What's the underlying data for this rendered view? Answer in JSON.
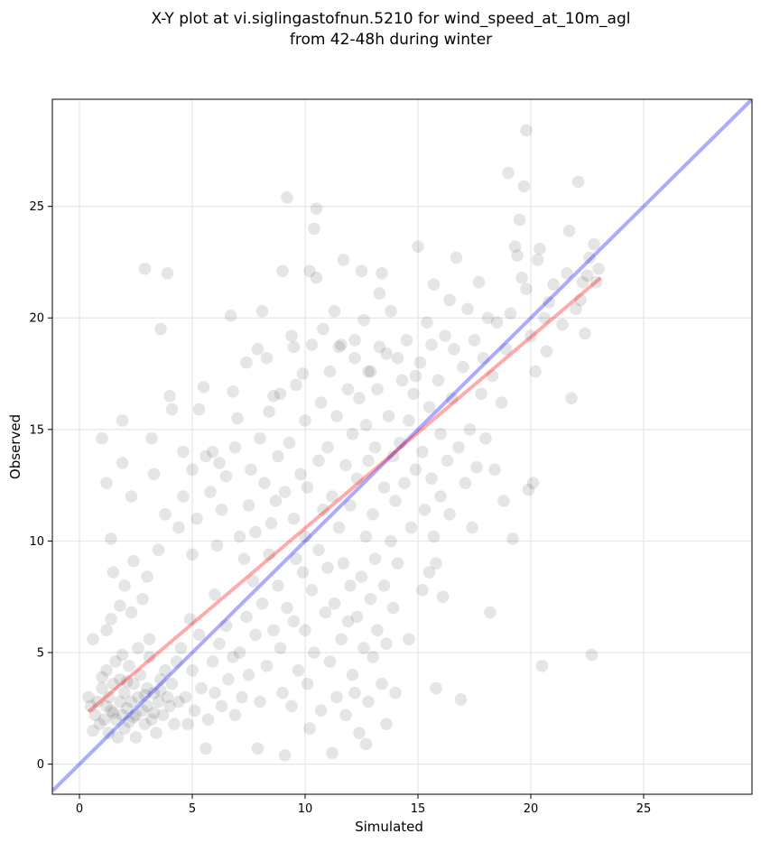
{
  "chart_data": {
    "type": "scatter",
    "title_lines": [
      "X-Y plot at vi.siglingastofnun.5210 for wind_speed_at_10m_agl",
      "from 42-48h during winter"
    ],
    "xlabel": "Simulated",
    "ylabel": "Observed",
    "xlim": [
      -1.2,
      29.8
    ],
    "ylim": [
      -1.35,
      29.8
    ],
    "x_ticks": [
      0,
      5,
      10,
      15,
      20,
      25
    ],
    "y_ticks": [
      0,
      5,
      10,
      15,
      20,
      25
    ],
    "grid": true,
    "point_color": "#000000",
    "point_alpha": 0.1,
    "regression_line": {
      "x": [
        0.4,
        23.1
      ],
      "y": [
        2.35,
        21.8
      ],
      "color": "#ff0000"
    },
    "identity_line": {
      "x": [
        -1.2,
        29.8
      ],
      "y": [
        -1.2,
        29.8
      ],
      "color": "#0000ff"
    },
    "points": [
      [
        0.4,
        3.0
      ],
      [
        0.5,
        2.6
      ],
      [
        0.6,
        1.5
      ],
      [
        0.6,
        5.6
      ],
      [
        0.7,
        2.2
      ],
      [
        0.8,
        2.8
      ],
      [
        0.9,
        1.8
      ],
      [
        1.0,
        3.4
      ],
      [
        1.1,
        2.0
      ],
      [
        1.2,
        4.2
      ],
      [
        1.2,
        2.6
      ],
      [
        1.3,
        3.0
      ],
      [
        1.3,
        1.4
      ],
      [
        1.4,
        2.4
      ],
      [
        1.5,
        3.6
      ],
      [
        1.6,
        2.0
      ],
      [
        1.6,
        4.6
      ],
      [
        1.7,
        1.2
      ],
      [
        1.8,
        2.8
      ],
      [
        1.8,
        3.8
      ],
      [
        1.9,
        2.2
      ],
      [
        2.0,
        1.6
      ],
      [
        2.0,
        3.2
      ],
      [
        2.1,
        2.5
      ],
      [
        2.2,
        4.4
      ],
      [
        2.2,
        1.9
      ],
      [
        2.3,
        2.8
      ],
      [
        2.4,
        3.6
      ],
      [
        2.5,
        2.2
      ],
      [
        2.5,
        1.2
      ],
      [
        2.6,
        3.0
      ],
      [
        2.7,
        4.0
      ],
      [
        2.8,
        2.4
      ],
      [
        2.9,
        1.8
      ],
      [
        3.0,
        3.4
      ],
      [
        3.0,
        2.6
      ],
      [
        3.1,
        4.8
      ],
      [
        3.2,
        2.0
      ],
      [
        3.3,
        3.2
      ],
      [
        3.4,
        1.4
      ],
      [
        3.5,
        2.8
      ],
      [
        3.6,
        3.8
      ],
      [
        3.7,
        2.2
      ],
      [
        3.8,
        4.2
      ],
      [
        3.9,
        3.0
      ],
      [
        4.0,
        2.6
      ],
      [
        4.1,
        3.6
      ],
      [
        4.2,
        1.8
      ],
      [
        4.3,
        4.6
      ],
      [
        4.4,
        2.8
      ],
      [
        1.0,
        3.9
      ],
      [
        1.5,
        2.3
      ],
      [
        2.1,
        3.7
      ],
      [
        2.4,
        2.1
      ],
      [
        2.9,
        3.1
      ],
      [
        3.3,
        2.3
      ],
      [
        3.6,
        3.3
      ],
      [
        1.9,
        4.9
      ],
      [
        2.6,
        5.2
      ],
      [
        3.1,
        5.6
      ],
      [
        1.2,
        6.0
      ],
      [
        1.4,
        6.5
      ],
      [
        1.8,
        7.1
      ],
      [
        2.3,
        6.8
      ],
      [
        2.8,
        7.4
      ],
      [
        1.5,
        8.6
      ],
      [
        2.0,
        8.0
      ],
      [
        2.4,
        9.1
      ],
      [
        3.0,
        8.4
      ],
      [
        3.5,
        9.6
      ],
      [
        1.2,
        12.6
      ],
      [
        1.4,
        10.1
      ],
      [
        1.9,
        13.5
      ],
      [
        1.9,
        15.4
      ],
      [
        1.0,
        14.6
      ],
      [
        2.3,
        12.0
      ],
      [
        2.9,
        22.2
      ],
      [
        3.2,
        14.6
      ],
      [
        3.6,
        19.5
      ],
      [
        3.9,
        22.0
      ],
      [
        4.0,
        16.5
      ],
      [
        4.1,
        15.9
      ],
      [
        3.3,
        13.0
      ],
      [
        3.8,
        11.2
      ],
      [
        4.4,
        10.6
      ],
      [
        4.6,
        12.0
      ],
      [
        4.9,
        6.5
      ],
      [
        5.0,
        9.4
      ],
      [
        5.2,
        11.0
      ],
      [
        5.3,
        15.9
      ],
      [
        5.5,
        16.9
      ],
      [
        5.6,
        13.8
      ],
      [
        5.8,
        12.2
      ],
      [
        6.0,
        7.6
      ],
      [
        6.1,
        9.8
      ],
      [
        6.3,
        11.4
      ],
      [
        6.5,
        12.9
      ],
      [
        6.7,
        20.1
      ],
      [
        6.9,
        14.2
      ],
      [
        7.1,
        10.2
      ],
      [
        4.5,
        5.2
      ],
      [
        4.7,
        3.0
      ],
      [
        4.8,
        1.8
      ],
      [
        5.0,
        4.2
      ],
      [
        5.1,
        2.4
      ],
      [
        5.3,
        5.8
      ],
      [
        5.4,
        3.4
      ],
      [
        5.6,
        0.7
      ],
      [
        5.7,
        2.0
      ],
      [
        5.9,
        4.6
      ],
      [
        6.0,
        3.2
      ],
      [
        6.2,
        5.4
      ],
      [
        6.3,
        2.6
      ],
      [
        6.5,
        6.2
      ],
      [
        6.6,
        3.8
      ],
      [
        6.8,
        4.8
      ],
      [
        6.9,
        2.2
      ],
      [
        7.1,
        5.0
      ],
      [
        7.2,
        3.0
      ],
      [
        7.4,
        6.6
      ],
      [
        7.5,
        4.0
      ],
      [
        7.7,
        8.2
      ],
      [
        7.8,
        5.8
      ],
      [
        7.9,
        0.7
      ],
      [
        8.0,
        2.8
      ],
      [
        8.1,
        7.2
      ],
      [
        8.3,
        4.4
      ],
      [
        8.4,
        9.4
      ],
      [
        8.6,
        6.0
      ],
      [
        8.7,
        11.8
      ],
      [
        7.3,
        9.2
      ],
      [
        7.5,
        11.6
      ],
      [
        7.6,
        13.2
      ],
      [
        7.8,
        10.4
      ],
      [
        7.9,
        18.6
      ],
      [
        8.0,
        14.6
      ],
      [
        8.1,
        20.3
      ],
      [
        8.2,
        12.6
      ],
      [
        8.4,
        15.8
      ],
      [
        8.5,
        10.8
      ],
      [
        8.8,
        13.8
      ],
      [
        8.9,
        16.6
      ],
      [
        9.0,
        22.1
      ],
      [
        9.1,
        12.2
      ],
      [
        9.2,
        25.4
      ],
      [
        9.3,
        14.4
      ],
      [
        9.4,
        19.2
      ],
      [
        9.5,
        11.0
      ],
      [
        9.6,
        17.0
      ],
      [
        9.8,
        13.0
      ],
      [
        8.8,
        8.0
      ],
      [
        8.9,
        5.2
      ],
      [
        9.0,
        3.2
      ],
      [
        9.1,
        0.4
      ],
      [
        9.2,
        7.0
      ],
      [
        9.4,
        2.6
      ],
      [
        9.5,
        6.4
      ],
      [
        9.6,
        9.2
      ],
      [
        9.7,
        4.2
      ],
      [
        9.9,
        8.6
      ],
      [
        10.0,
        10.2
      ],
      [
        10.0,
        15.4
      ],
      [
        10.1,
        12.4
      ],
      [
        10.2,
        22.1
      ],
      [
        10.3,
        18.8
      ],
      [
        10.4,
        24.0
      ],
      [
        10.5,
        21.8
      ],
      [
        10.5,
        24.9
      ],
      [
        10.6,
        13.6
      ],
      [
        10.7,
        16.2
      ],
      [
        10.0,
        6.0
      ],
      [
        10.1,
        3.6
      ],
      [
        10.2,
        1.6
      ],
      [
        10.3,
        7.8
      ],
      [
        10.4,
        5.0
      ],
      [
        10.6,
        9.6
      ],
      [
        10.7,
        2.4
      ],
      [
        10.8,
        11.4
      ],
      [
        10.9,
        6.8
      ],
      [
        11.0,
        8.8
      ],
      [
        11.0,
        14.2
      ],
      [
        11.1,
        17.6
      ],
      [
        11.2,
        12.0
      ],
      [
        11.3,
        20.3
      ],
      [
        11.4,
        15.6
      ],
      [
        11.5,
        10.6
      ],
      [
        11.6,
        18.8
      ],
      [
        11.7,
        22.6
      ],
      [
        11.8,
        13.4
      ],
      [
        11.9,
        16.8
      ],
      [
        11.1,
        4.6
      ],
      [
        11.2,
        0.5
      ],
      [
        11.3,
        7.2
      ],
      [
        11.4,
        3.0
      ],
      [
        11.6,
        5.6
      ],
      [
        11.7,
        9.0
      ],
      [
        11.8,
        2.2
      ],
      [
        11.9,
        6.4
      ],
      [
        12.0,
        8.0
      ],
      [
        12.1,
        4.0
      ],
      [
        12.0,
        11.6
      ],
      [
        12.1,
        14.8
      ],
      [
        12.2,
        18.2
      ],
      [
        12.3,
        12.8
      ],
      [
        12.4,
        16.4
      ],
      [
        12.5,
        22.1
      ],
      [
        12.6,
        19.9
      ],
      [
        12.7,
        15.2
      ],
      [
        12.8,
        13.6
      ],
      [
        12.9,
        17.6
      ],
      [
        12.2,
        3.2
      ],
      [
        12.3,
        6.6
      ],
      [
        12.4,
        1.4
      ],
      [
        12.5,
        8.4
      ],
      [
        12.6,
        5.2
      ],
      [
        12.7,
        10.2
      ],
      [
        12.8,
        2.8
      ],
      [
        12.9,
        7.4
      ],
      [
        13.0,
        4.8
      ],
      [
        13.1,
        9.2
      ],
      [
        13.0,
        11.2
      ],
      [
        13.1,
        14.2
      ],
      [
        13.2,
        16.8
      ],
      [
        13.3,
        21.1
      ],
      [
        13.4,
        22.0
      ],
      [
        13.5,
        12.4
      ],
      [
        13.6,
        18.4
      ],
      [
        13.7,
        15.6
      ],
      [
        13.8,
        20.3
      ],
      [
        13.9,
        13.8
      ],
      [
        13.2,
        6.0
      ],
      [
        13.4,
        3.6
      ],
      [
        13.5,
        8.0
      ],
      [
        13.6,
        5.4
      ],
      [
        13.8,
        10.0
      ],
      [
        13.9,
        7.0
      ],
      [
        14.0,
        11.8
      ],
      [
        14.1,
        9.0
      ],
      [
        14.2,
        14.4
      ],
      [
        14.3,
        17.2
      ],
      [
        14.4,
        12.6
      ],
      [
        14.5,
        19.0
      ],
      [
        14.6,
        15.4
      ],
      [
        14.7,
        10.6
      ],
      [
        14.8,
        16.6
      ],
      [
        14.9,
        13.2
      ],
      [
        15.0,
        23.2
      ],
      [
        15.1,
        18.0
      ],
      [
        15.2,
        14.0
      ],
      [
        15.3,
        11.4
      ],
      [
        15.4,
        19.8
      ],
      [
        15.5,
        16.0
      ],
      [
        15.6,
        12.8
      ],
      [
        15.7,
        21.5
      ],
      [
        15.8,
        9.0
      ],
      [
        15.9,
        17.2
      ],
      [
        16.0,
        14.8
      ],
      [
        16.1,
        7.5
      ],
      [
        16.2,
        19.2
      ],
      [
        16.3,
        13.6
      ],
      [
        15.5,
        8.6
      ],
      [
        15.7,
        10.2
      ],
      [
        15.8,
        3.4
      ],
      [
        16.0,
        12.0
      ],
      [
        16.4,
        11.2
      ],
      [
        16.5,
        16.4
      ],
      [
        16.6,
        18.6
      ],
      [
        16.7,
        22.7
      ],
      [
        16.8,
        14.2
      ],
      [
        16.9,
        2.9
      ],
      [
        17.0,
        17.8
      ],
      [
        17.1,
        12.6
      ],
      [
        17.2,
        20.4
      ],
      [
        17.3,
        15.0
      ],
      [
        17.4,
        10.6
      ],
      [
        17.5,
        19.0
      ],
      [
        17.6,
        13.3
      ],
      [
        17.7,
        21.6
      ],
      [
        17.8,
        16.6
      ],
      [
        17.9,
        18.2
      ],
      [
        18.0,
        14.6
      ],
      [
        18.1,
        20.0
      ],
      [
        18.2,
        6.8
      ],
      [
        18.3,
        17.4
      ],
      [
        18.4,
        13.2
      ],
      [
        18.5,
        19.8
      ],
      [
        18.7,
        16.2
      ],
      [
        18.8,
        11.8
      ],
      [
        18.9,
        18.6
      ],
      [
        19.0,
        26.5
      ],
      [
        19.1,
        20.2
      ],
      [
        19.2,
        10.1
      ],
      [
        19.3,
        23.2
      ],
      [
        19.4,
        22.8
      ],
      [
        19.5,
        24.4
      ],
      [
        19.6,
        21.8
      ],
      [
        19.7,
        25.9
      ],
      [
        19.8,
        21.3
      ],
      [
        19.8,
        28.4
      ],
      [
        19.9,
        12.3
      ],
      [
        20.0,
        19.2
      ],
      [
        20.1,
        12.6
      ],
      [
        20.2,
        17.6
      ],
      [
        20.3,
        22.6
      ],
      [
        20.4,
        23.1
      ],
      [
        20.5,
        4.4
      ],
      [
        20.6,
        20.0
      ],
      [
        20.7,
        18.5
      ],
      [
        20.8,
        20.7
      ],
      [
        21.0,
        21.5
      ],
      [
        21.4,
        19.7
      ],
      [
        21.6,
        22.0
      ],
      [
        21.8,
        16.4
      ],
      [
        21.7,
        23.9
      ],
      [
        22.0,
        20.4
      ],
      [
        22.1,
        26.1
      ],
      [
        22.2,
        20.8
      ],
      [
        22.3,
        21.6
      ],
      [
        22.4,
        19.3
      ],
      [
        22.6,
        22.7
      ],
      [
        22.7,
        4.9
      ],
      [
        22.8,
        23.3
      ],
      [
        22.9,
        21.6
      ],
      [
        23.0,
        22.2
      ],
      [
        22.5,
        21.9
      ],
      [
        14.6,
        5.6
      ],
      [
        15.2,
        7.8
      ],
      [
        14.0,
        3.2
      ],
      [
        13.6,
        1.8
      ],
      [
        12.7,
        0.9
      ],
      [
        6.8,
        16.7
      ],
      [
        7.0,
        15.5
      ],
      [
        7.4,
        18.0
      ],
      [
        6.2,
        13.5
      ],
      [
        5.9,
        14.0
      ],
      [
        5.0,
        13.2
      ],
      [
        4.6,
        14.0
      ],
      [
        8.6,
        16.5
      ],
      [
        8.3,
        18.2
      ],
      [
        9.5,
        18.7
      ],
      [
        9.9,
        17.5
      ],
      [
        10.8,
        19.5
      ],
      [
        11.5,
        18.7
      ],
      [
        12.2,
        19.0
      ],
      [
        12.8,
        17.6
      ],
      [
        13.3,
        18.7
      ],
      [
        14.1,
        18.2
      ],
      [
        14.9,
        17.4
      ],
      [
        15.6,
        18.8
      ],
      [
        16.4,
        20.8
      ]
    ]
  }
}
